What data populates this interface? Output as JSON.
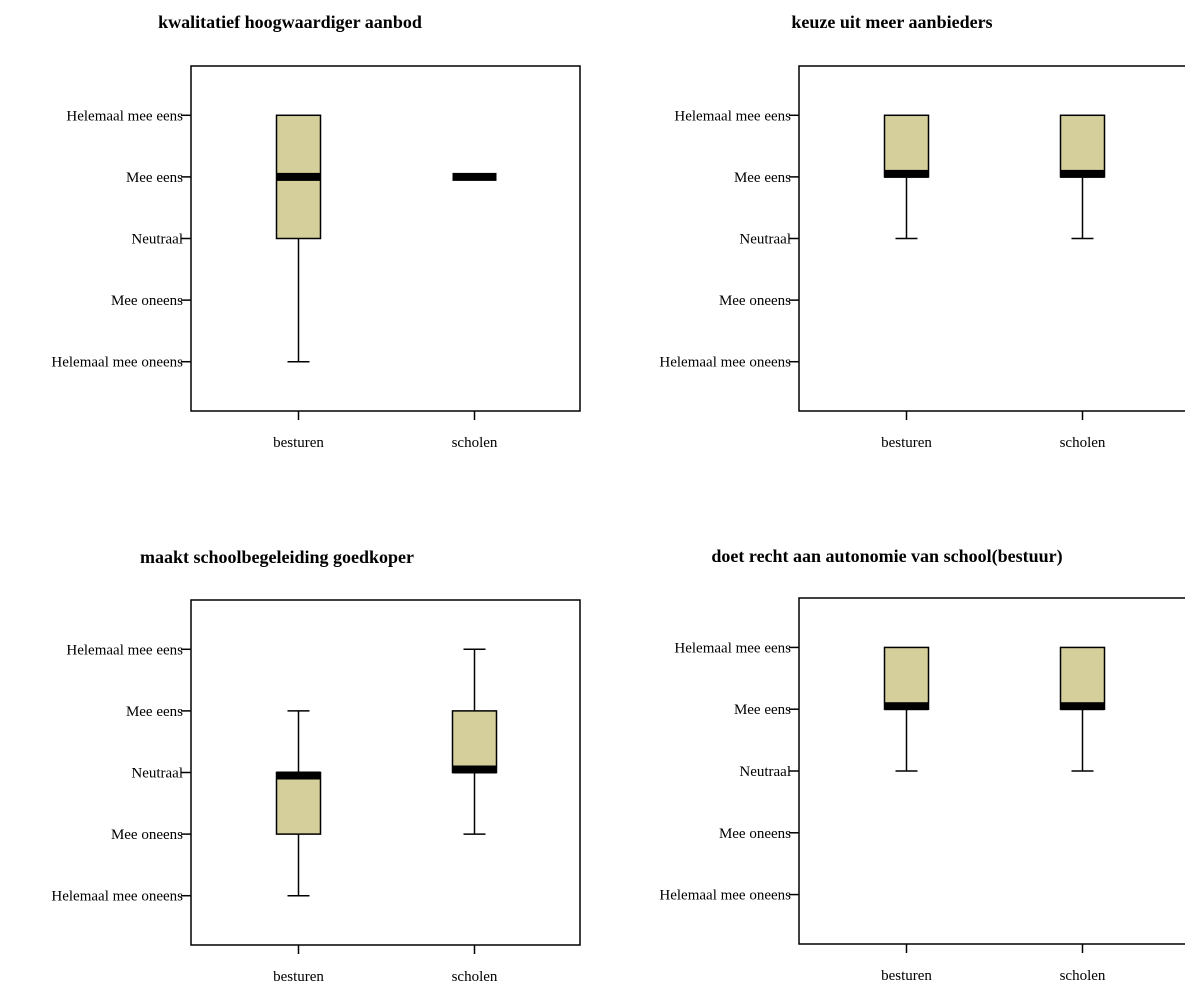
{
  "colors": {
    "box_fill": "#d4cf9b",
    "median": "#000000",
    "stroke": "#000000",
    "background": "#ffffff"
  },
  "chart_data": [
    {
      "type": "boxplot",
      "title": "kwalitatief hoogwaardiger aanbod",
      "categories": [
        "besturen",
        "scholen"
      ],
      "y_levels": [
        "Helemaal mee oneens",
        "Mee oneens",
        "Neutraal",
        "Mee eens",
        "Helemaal mee eens"
      ],
      "ylim": [
        0.2,
        5.8
      ],
      "boxes": [
        {
          "category": "besturen",
          "whisker_low": 1,
          "q1": 3,
          "median": 4,
          "q3": 5,
          "whisker_high": 5
        },
        {
          "category": "scholen",
          "whisker_low": 4,
          "q1": 4,
          "median": 4,
          "q3": 4,
          "whisker_high": 4
        }
      ]
    },
    {
      "type": "boxplot",
      "title": "keuze uit meer aanbieders",
      "categories": [
        "besturen",
        "scholen"
      ],
      "y_levels": [
        "Helemaal mee oneens",
        "Mee oneens",
        "Neutraal",
        "Mee eens",
        "Helemaal mee eens"
      ],
      "ylim": [
        0.2,
        5.8
      ],
      "boxes": [
        {
          "category": "besturen",
          "whisker_low": 3,
          "q1": 4,
          "median": 4,
          "q3": 5,
          "whisker_high": 5
        },
        {
          "category": "scholen",
          "whisker_low": 3,
          "q1": 4,
          "median": 4,
          "q3": 5,
          "whisker_high": 5
        }
      ]
    },
    {
      "type": "boxplot",
      "title": "maakt schoolbegeleiding goedkoper",
      "categories": [
        "besturen",
        "scholen"
      ],
      "y_levels": [
        "Helemaal mee oneens",
        "Mee oneens",
        "Neutraal",
        "Mee eens",
        "Helemaal mee eens"
      ],
      "ylim": [
        0.2,
        5.8
      ],
      "boxes": [
        {
          "category": "besturen",
          "whisker_low": 1,
          "q1": 2,
          "median": 3,
          "q3": 3,
          "whisker_high": 4
        },
        {
          "category": "scholen",
          "whisker_low": 2,
          "q1": 3,
          "median": 3,
          "q3": 4,
          "whisker_high": 5
        }
      ]
    },
    {
      "type": "boxplot",
      "title": "doet recht aan autonomie van school(bestuur)",
      "categories": [
        "besturen",
        "scholen"
      ],
      "y_levels": [
        "Helemaal mee oneens",
        "Mee oneens",
        "Neutraal",
        "Mee eens",
        "Helemaal mee eens"
      ],
      "ylim": [
        0.2,
        5.8
      ],
      "boxes": [
        {
          "category": "besturen",
          "whisker_low": 3,
          "q1": 4,
          "median": 4,
          "q3": 5,
          "whisker_high": 5
        },
        {
          "category": "scholen",
          "whisker_low": 3,
          "q1": 4,
          "median": 4,
          "q3": 5,
          "whisker_high": 5
        }
      ]
    }
  ]
}
